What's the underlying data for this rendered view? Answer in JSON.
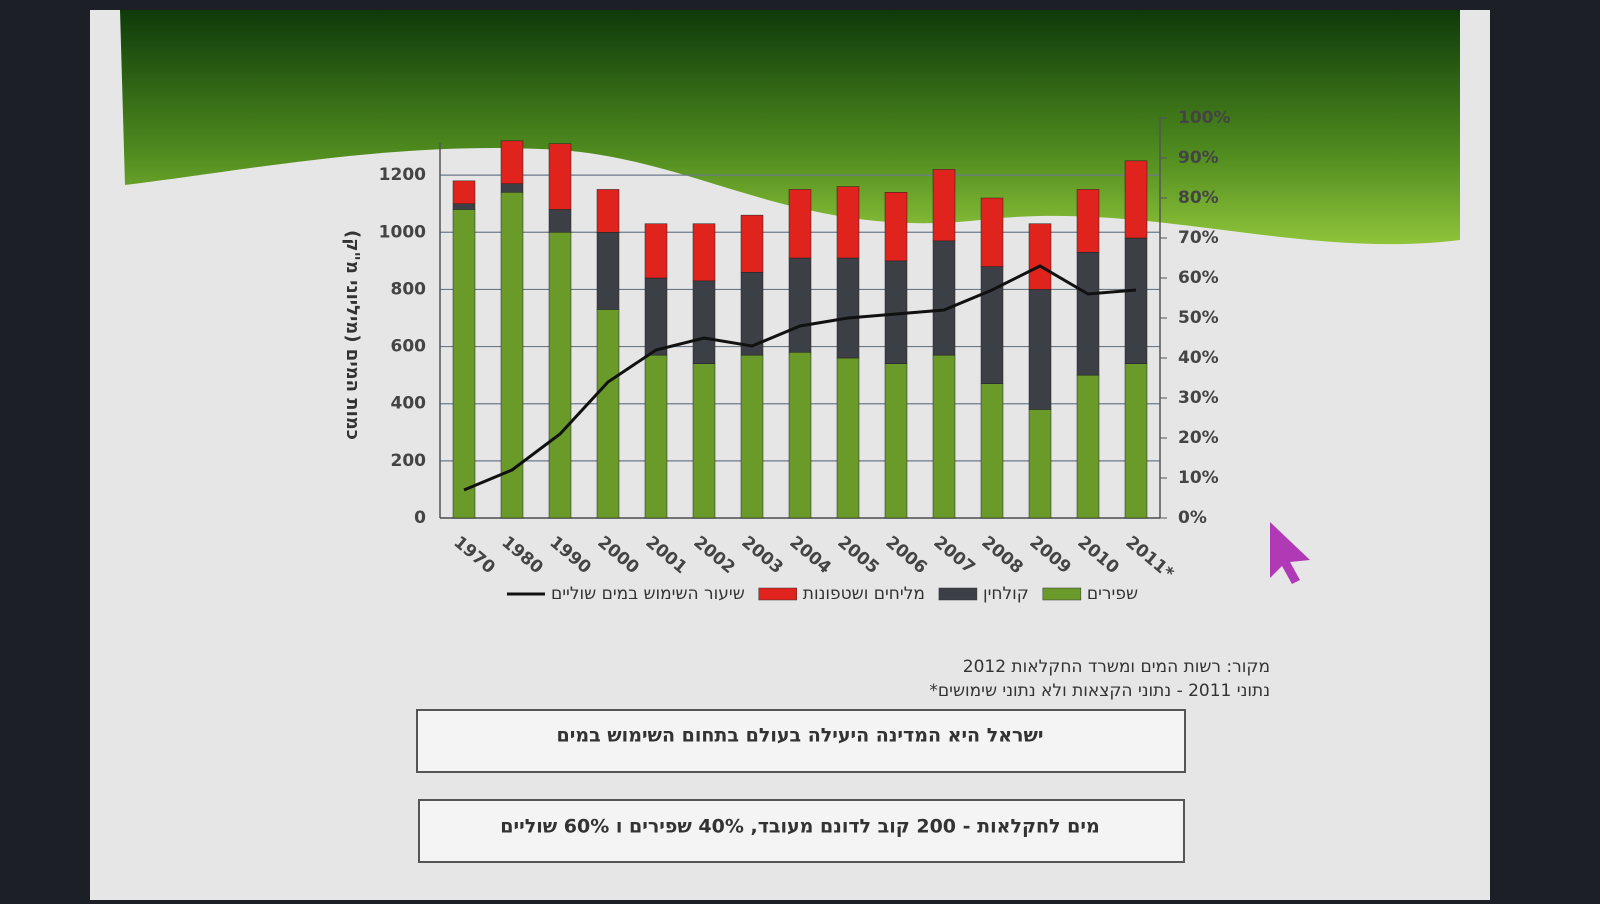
{
  "chart_data": {
    "type": "bar",
    "y_label": "כמות המים (מיליוני מ\"ק)",
    "categories": [
      "1970",
      "1980",
      "1990",
      "2000",
      "2001",
      "2002",
      "2003",
      "2004",
      "2005",
      "2006",
      "2007",
      "2008",
      "2009",
      "2010",
      "2011*"
    ],
    "series": [
      {
        "name": "שפירים",
        "color": "#6a9a2a",
        "values": [
          1080,
          1140,
          1000,
          730,
          570,
          540,
          570,
          580,
          560,
          540,
          570,
          470,
          380,
          500,
          540
        ]
      },
      {
        "name": "קולחין",
        "color": "#3c3f45",
        "values": [
          20,
          30,
          80,
          270,
          270,
          290,
          290,
          330,
          350,
          360,
          400,
          410,
          420,
          430,
          440
        ]
      },
      {
        "name": "מליחים ושטפונות",
        "color": "#e0231c",
        "values": [
          80,
          150,
          230,
          150,
          190,
          200,
          200,
          240,
          250,
          240,
          250,
          240,
          230,
          220,
          270
        ]
      },
      {
        "name": "שיעור השימוש במים שוליים",
        "color": "#111111",
        "type": "line",
        "axis": "y2",
        "values": [
          7,
          12,
          21,
          34,
          42,
          45,
          43,
          48,
          50,
          51,
          52,
          57,
          63,
          56,
          57
        ]
      }
    ],
    "ylim": [
      0,
      1400
    ],
    "yticks": [
      0,
      200,
      400,
      600,
      800,
      1000,
      1200
    ],
    "y2lim": [
      0,
      100
    ],
    "y2ticks": [
      {
        "value": 0,
        "label": "0%"
      },
      {
        "value": 10,
        "label": "10%"
      },
      {
        "value": 20,
        "label": "20%"
      },
      {
        "value": 30,
        "label": "30%"
      },
      {
        "value": 40,
        "label": "40%"
      },
      {
        "value": 50,
        "label": "50%"
      },
      {
        "value": 60,
        "label": "60%"
      },
      {
        "value": 70,
        "label": "70%"
      },
      {
        "value": 80,
        "label": "80%"
      },
      {
        "value": 90,
        "label": "90%"
      },
      {
        "value": 100,
        "label": "100%"
      }
    ],
    "grid": true,
    "source": "מקור: רשות המים ומשרד החקלאות 2012",
    "footnote": "*נתוני 2011 - נתוני הקצאות ולא נתוני שימושים",
    "boxes": [
      "ישראל היא המדינה היעילה בעולם בתחום השימוש במים",
      "מים לחקלאות - 200 קוב לדונם מעובד, 40% שפירים ו 60% שוליים"
    ]
  }
}
